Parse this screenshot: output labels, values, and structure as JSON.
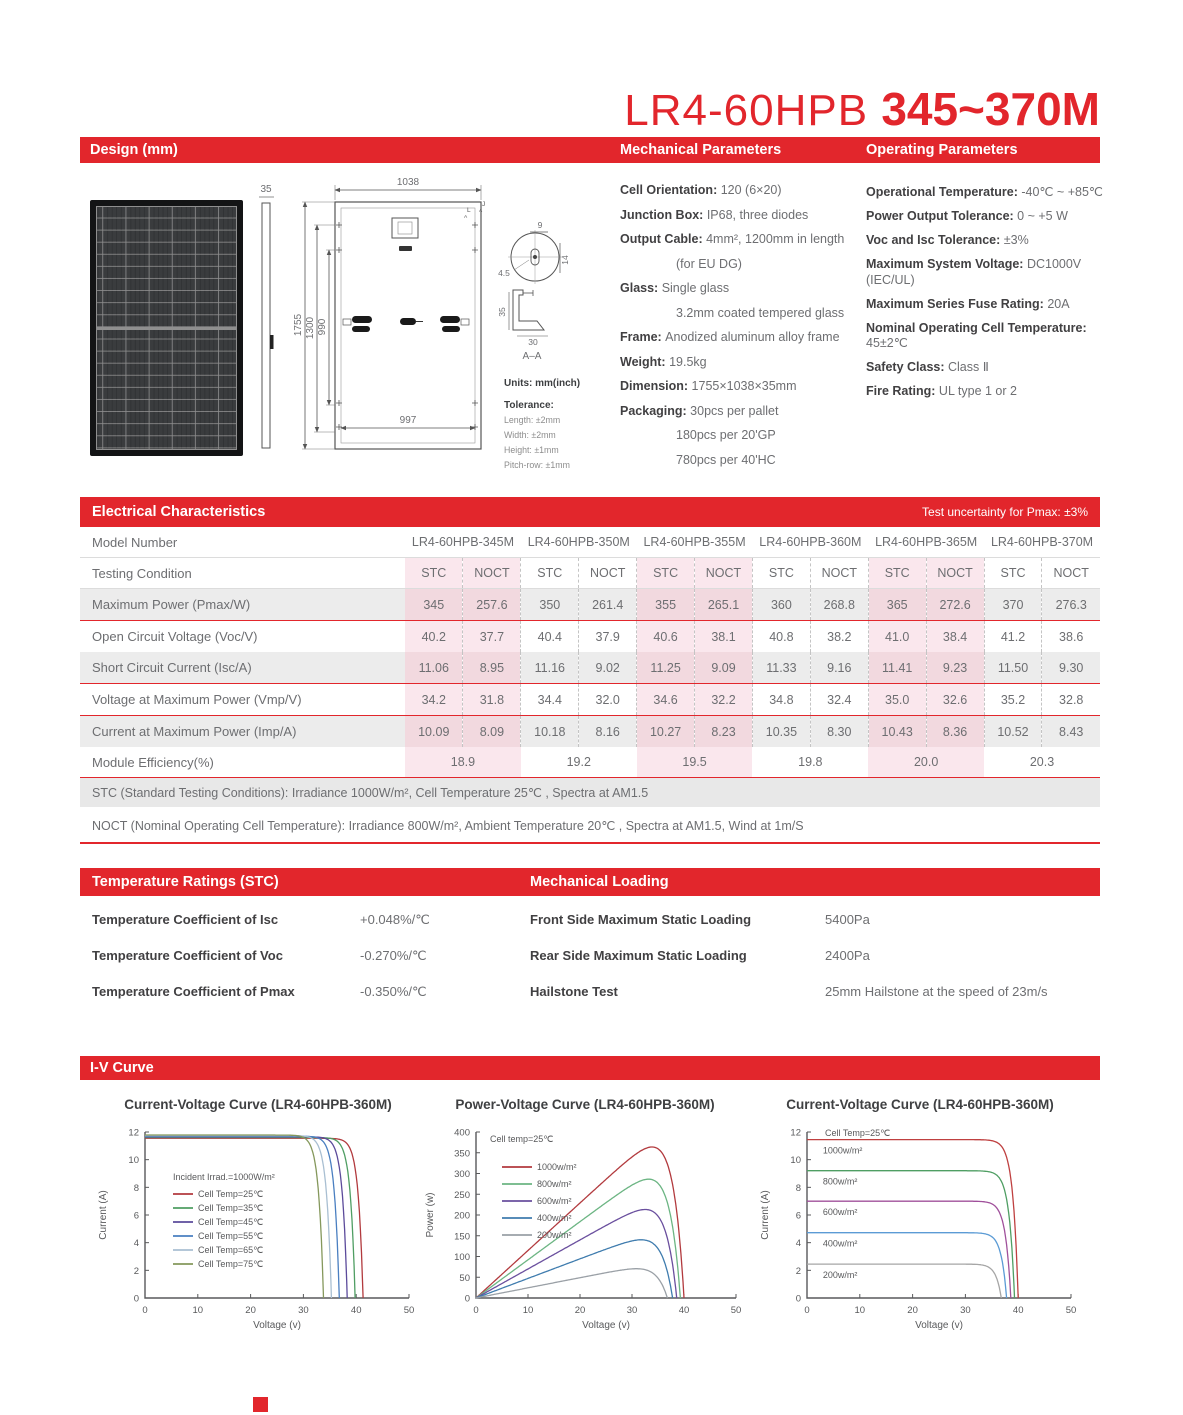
{
  "title": {
    "model": "LR4-60HPB ",
    "range": "345~370M"
  },
  "colors": {
    "red": "#e2262c",
    "pink_light": "#fae7ed",
    "pink_dark": "#f2d9df",
    "row_grey": "#ececec"
  },
  "banners": {
    "design": "Design (mm)",
    "mechanical": "Mechanical Parameters",
    "operating": "Operating Parameters",
    "electrical": "Electrical Characteristics",
    "electrical_note": "Test uncertainty for Pmax: ±3%",
    "temperature": "Temperature Ratings (STC)",
    "loading": "Mechanical Loading",
    "iv": "I-V Curve"
  },
  "design": {
    "dims": {
      "thickness": "35",
      "width_top": "1038",
      "height": "1755",
      "inner1": "1300",
      "inner2": "990",
      "width_bottom": "997",
      "hole_d": "9",
      "hole_w": "14",
      "hole_r": "4.5",
      "section_h": "35",
      "section_w": "30",
      "section_label": "A–A"
    },
    "cut_labels": {
      "l": "L",
      "j": "J",
      "a": "A"
    },
    "units_label": "Units: mm(inch)",
    "tolerance_label": "Tolerance:",
    "tolerances": [
      "Length: ±2mm",
      "Width: ±2mm",
      "Height: ±1mm",
      "Pitch-row: ±1mm"
    ]
  },
  "mechanical": [
    {
      "label": "Cell Orientation:",
      "value": "120 (6×20)"
    },
    {
      "label": "Junction Box:",
      "value": "IP68, three diodes"
    },
    {
      "label": "Output Cable:",
      "value": "4mm², 1200mm in length"
    },
    {
      "label": "",
      "value": "(for EU DG)",
      "indent": true
    },
    {
      "label": "Glass:",
      "value": "Single glass"
    },
    {
      "label": "",
      "value": "3.2mm coated tempered glass",
      "indent": true
    },
    {
      "label": "Frame:",
      "value": "Anodized aluminum alloy frame"
    },
    {
      "label": "Weight:",
      "value": "19.5kg"
    },
    {
      "label": "Dimension:",
      "value": "1755×1038×35mm"
    },
    {
      "label": "Packaging:",
      "value": "30pcs per pallet"
    },
    {
      "label": "",
      "value": "180pcs per 20'GP",
      "indent": true
    },
    {
      "label": "",
      "value": "780pcs per 40'HC",
      "indent": true
    }
  ],
  "operating": [
    {
      "label": "Operational Temperature:",
      "value": "-40℃ ~ +85℃"
    },
    {
      "label": "Power Output Tolerance:",
      "value": "0 ~ +5 W"
    },
    {
      "label": "Voc and Isc Tolerance:",
      "value": "±3%"
    },
    {
      "label": "Maximum System Voltage:",
      "value": "DC1000V (IEC/UL)"
    },
    {
      "label": "Maximum Series Fuse Rating:",
      "value": "20A"
    },
    {
      "label": "Nominal Operating Cell Temperature:",
      "value": "45±2℃"
    },
    {
      "label": "Safety Class:",
      "value": "Class Ⅱ"
    },
    {
      "label": "Fire Rating:",
      "value": "UL type 1 or 2"
    }
  ],
  "table": {
    "model_label": "Model Number",
    "condition_label": "Testing Condition",
    "models": [
      "LR4-60HPB-345M",
      "LR4-60HPB-350M",
      "LR4-60HPB-355M",
      "LR4-60HPB-360M",
      "LR4-60HPB-365M",
      "LR4-60HPB-370M"
    ],
    "conditions": [
      "STC",
      "NOCT"
    ],
    "rows": [
      {
        "label": "Maximum Power (Pmax/W)",
        "values": [
          "345",
          "257.6",
          "350",
          "261.4",
          "355",
          "265.1",
          "360",
          "268.8",
          "365",
          "272.6",
          "370",
          "276.3"
        ]
      },
      {
        "label": "Open Circuit Voltage (Voc/V)",
        "values": [
          "40.2",
          "37.7",
          "40.4",
          "37.9",
          "40.6",
          "38.1",
          "40.8",
          "38.2",
          "41.0",
          "38.4",
          "41.2",
          "38.6"
        ]
      },
      {
        "label": "Short Circuit Current (Isc/A)",
        "values": [
          "11.06",
          "8.95",
          "11.16",
          "9.02",
          "11.25",
          "9.09",
          "11.33",
          "9.16",
          "11.41",
          "9.23",
          "11.50",
          "9.30"
        ]
      },
      {
        "label": "Voltage at Maximum Power (Vmp/V)",
        "values": [
          "34.2",
          "31.8",
          "34.4",
          "32.0",
          "34.6",
          "32.2",
          "34.8",
          "32.4",
          "35.0",
          "32.6",
          "35.2",
          "32.8"
        ]
      },
      {
        "label": "Current at Maximum Power (Imp/A)",
        "values": [
          "10.09",
          "8.09",
          "10.18",
          "8.16",
          "10.27",
          "8.23",
          "10.35",
          "8.30",
          "10.43",
          "8.36",
          "10.52",
          "8.43"
        ]
      }
    ],
    "efficiency": {
      "label": "Module Efficiency(%)",
      "values": [
        "18.9",
        "19.2",
        "19.5",
        "19.8",
        "20.0",
        "20.3"
      ]
    }
  },
  "notes": {
    "stc": "STC (Standard Testing Conditions): Irradiance 1000W/m², Cell Temperature 25℃ , Spectra at AM1.5",
    "noct": "NOCT (Nominal Operating Cell Temperature): Irradiance 800W/m², Ambient Temperature 20℃ , Spectra at AM1.5, Wind at 1m/S"
  },
  "temperature_ratings": [
    {
      "label": "Temperature Coefficient of  Isc",
      "value": "+0.048%/℃"
    },
    {
      "label": "Temperature Coefficient of  Voc",
      "value": "-0.270%/℃"
    },
    {
      "label": "Temperature Coefficient of  Pmax",
      "value": "-0.350%/℃"
    }
  ],
  "mechanical_loading": [
    {
      "label": "Front Side Maximum Static Loading",
      "value": "5400Pa"
    },
    {
      "label": "Rear Side Maximum Static Loading",
      "value": "2400Pa"
    },
    {
      "label": "Hailstone Test",
      "value": "25mm Hailstone at the speed of 23m/s"
    }
  ],
  "chart_data": [
    {
      "type": "line",
      "title": "Current-Voltage Curve (LR4-60HPB-360M)",
      "xlabel": "Voltage (v)",
      "ylabel": "Current (A)",
      "xlim": [
        0,
        50
      ],
      "ylim": [
        0,
        12
      ],
      "xticks": [
        0,
        10,
        20,
        30,
        40,
        50
      ],
      "yticks": [
        0,
        2,
        4,
        6,
        8,
        10,
        12
      ],
      "grid": false,
      "legend_position": "inside-left",
      "legend_title": "Incident Irrad.=1000W/m²",
      "series": [
        {
          "name": "Cell Temp=25℃",
          "color": "#b23a3e",
          "isc": 11.55,
          "voc": 41.3
        },
        {
          "name": "Cell Temp=35℃",
          "color": "#4f9e63",
          "isc": 11.6,
          "voc": 39.8
        },
        {
          "name": "Cell Temp=45℃",
          "color": "#5c4b9b",
          "isc": 11.65,
          "voc": 38.3
        },
        {
          "name": "Cell Temp=55℃",
          "color": "#4a7fc1",
          "isc": 11.7,
          "voc": 36.8
        },
        {
          "name": "Cell Temp=65℃",
          "color": "#a9bfd2",
          "isc": 11.74,
          "voc": 35.3
        },
        {
          "name": "Cell Temp=75℃",
          "color": "#85985c",
          "isc": 11.78,
          "voc": 33.8
        }
      ]
    },
    {
      "type": "line",
      "title": "Power-Voltage Curve (LR4-60HPB-360M)",
      "xlabel": "Voltage (v)",
      "ylabel": "Power (w)",
      "xlim": [
        0,
        50
      ],
      "ylim": [
        0,
        400
      ],
      "xticks": [
        0,
        10,
        20,
        30,
        40,
        50
      ],
      "yticks": [
        0,
        50,
        100,
        150,
        200,
        250,
        300,
        350,
        400
      ],
      "grid": false,
      "legend_position": "inside-left",
      "annotation": "Cell temp=25℃",
      "series": [
        {
          "name": "1000w/m²",
          "color": "#b23a3e",
          "isc": 11.45,
          "voc": 40.0
        },
        {
          "name": "800w/m²",
          "color": "#6cb583",
          "isc": 9.2,
          "voc": 39.3
        },
        {
          "name": "600w/m²",
          "color": "#6a4f9e",
          "isc": 7.0,
          "voc": 38.6
        },
        {
          "name": "400w/m²",
          "color": "#3f7cae",
          "isc": 4.72,
          "voc": 37.8
        },
        {
          "name": "200w/m²",
          "color": "#9aa0a6",
          "isc": 2.45,
          "voc": 36.8
        }
      ]
    },
    {
      "type": "line",
      "title": "Current-Voltage Curve (LR4-60HPB-360M)",
      "xlabel": "Voltage (v)",
      "ylabel": "Current (A)",
      "xlim": [
        0,
        50
      ],
      "ylim": [
        0,
        12
      ],
      "xticks": [
        0,
        10,
        20,
        30,
        40,
        50
      ],
      "yticks": [
        0,
        2,
        4,
        6,
        8,
        10,
        12
      ],
      "grid": false,
      "legend_position": "inline",
      "annotation": "Cell Temp=25℃",
      "series": [
        {
          "name": "1000w/m²",
          "color": "#bf4040",
          "isc": 11.45,
          "voc": 40.0
        },
        {
          "name": "800w/m²",
          "color": "#4f9e63",
          "isc": 9.2,
          "voc": 39.3
        },
        {
          "name": "600w/m²",
          "color": "#a0509b",
          "isc": 7.0,
          "voc": 38.6
        },
        {
          "name": "400w/m²",
          "color": "#5b9bd5",
          "isc": 4.72,
          "voc": 37.8
        },
        {
          "name": "200w/m²",
          "color": "#a6a6a6",
          "isc": 2.45,
          "voc": 36.8
        }
      ]
    }
  ]
}
